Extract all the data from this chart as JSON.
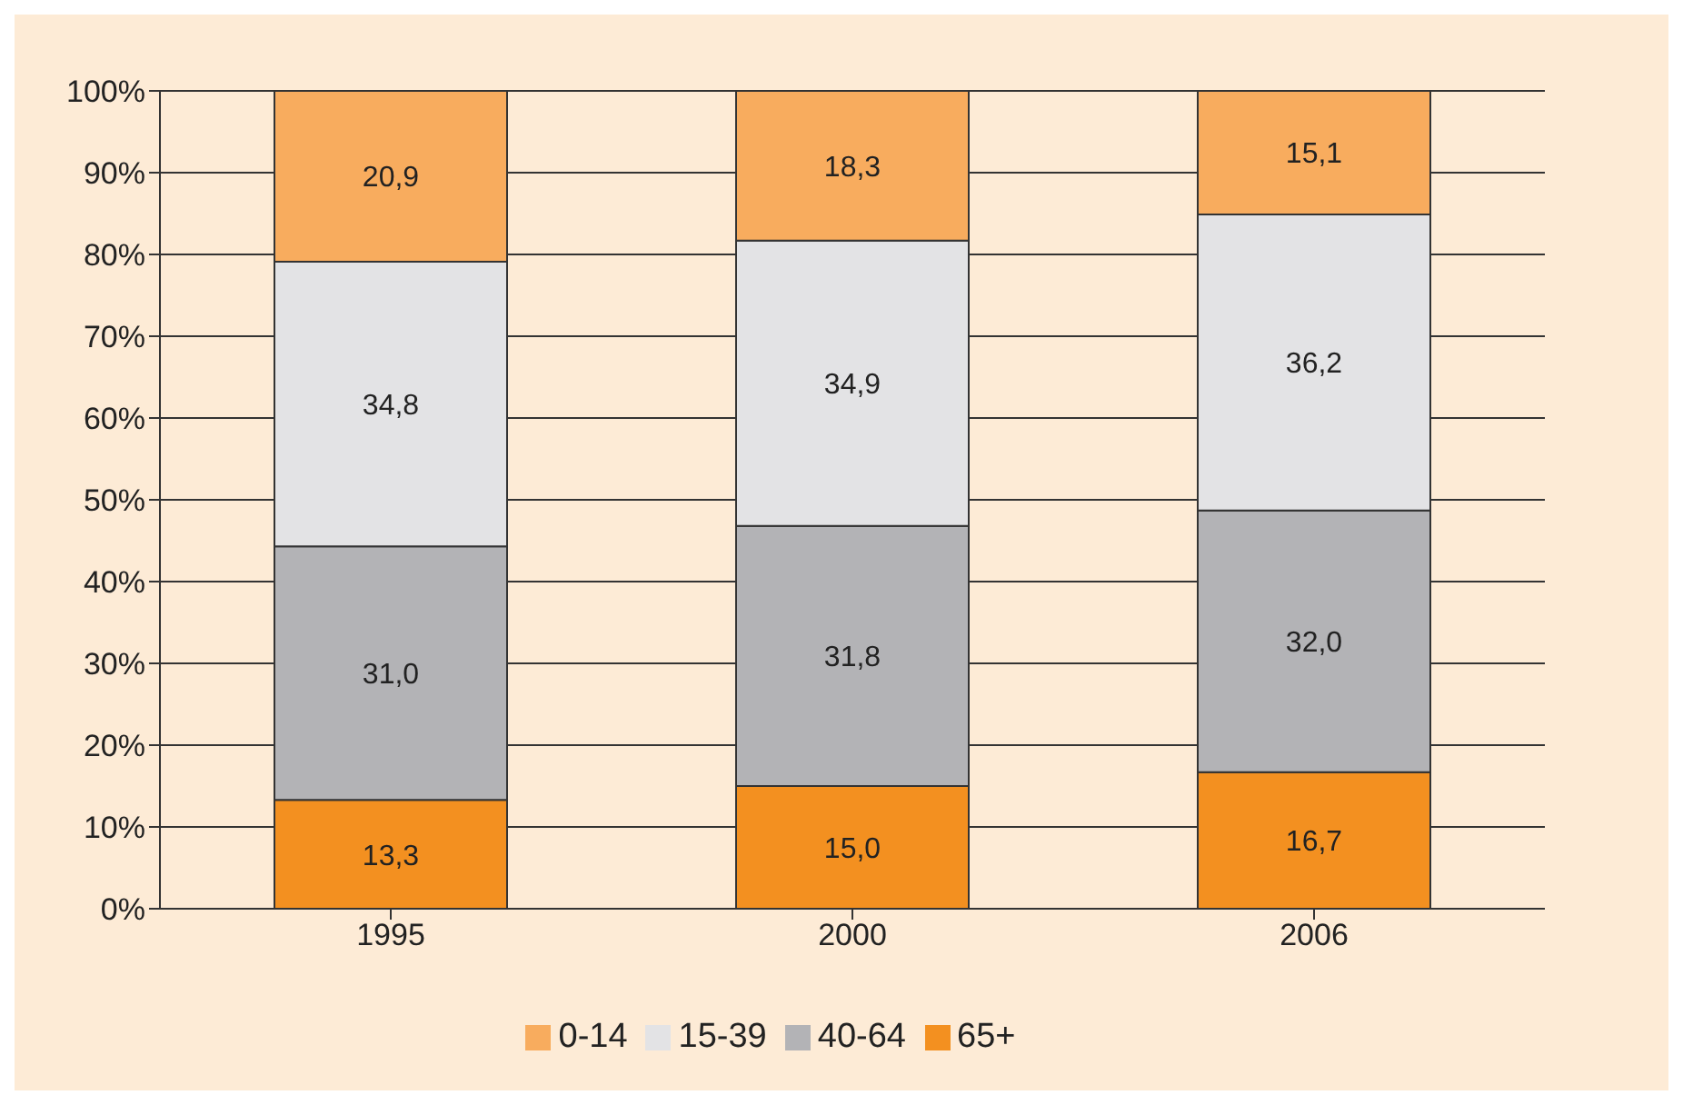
{
  "chart_data": {
    "type": "bar",
    "stacked": true,
    "categories": [
      "1995",
      "2000",
      "2006"
    ],
    "series": [
      {
        "name": "65+",
        "color": "#f39020",
        "values": [
          13.3,
          15.0,
          16.7
        ],
        "value_labels": [
          "13,3",
          "15,0",
          "16,7"
        ]
      },
      {
        "name": "40-64",
        "color": "#b3b3b6",
        "values": [
          31.0,
          31.8,
          32.0
        ],
        "value_labels": [
          "31,0",
          "31,8",
          "32,0"
        ]
      },
      {
        "name": "15-39",
        "color": "#e3e3e5",
        "values": [
          34.8,
          34.9,
          36.2
        ],
        "value_labels": [
          "34,8",
          "34,9",
          "36,2"
        ]
      },
      {
        "name": "0-14",
        "color": "#f8ac5e",
        "values": [
          20.9,
          18.3,
          15.1
        ],
        "value_labels": [
          "20,9",
          "18,3",
          "15,1"
        ]
      }
    ],
    "ylim": [
      0,
      100
    ],
    "yticks": [
      {
        "value": 0,
        "label": "0%"
      },
      {
        "value": 10,
        "label": "10%"
      },
      {
        "value": 20,
        "label": "20%"
      },
      {
        "value": 30,
        "label": "30%"
      },
      {
        "value": 40,
        "label": "40%"
      },
      {
        "value": 50,
        "label": "50%"
      },
      {
        "value": 60,
        "label": "60%"
      },
      {
        "value": 70,
        "label": "70%"
      },
      {
        "value": 80,
        "label": "80%"
      },
      {
        "value": 90,
        "label": "90%"
      },
      {
        "value": 100,
        "label": "100%"
      }
    ],
    "grid": "y",
    "legend": "bottom"
  }
}
